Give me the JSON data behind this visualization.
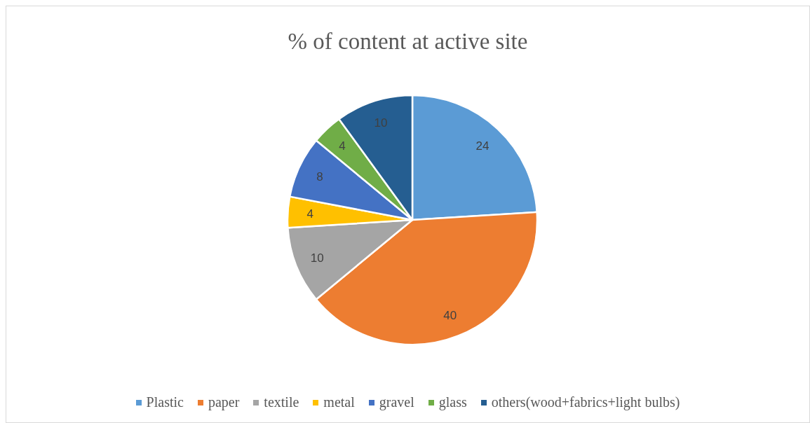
{
  "chart_data": {
    "type": "pie",
    "title": "% of content at active site",
    "categories": [
      "Plastic",
      "paper",
      "textile",
      "metal",
      "gravel",
      "glass",
      "others(wood+fabrics+light bulbs)"
    ],
    "values": [
      24,
      40,
      10,
      4,
      8,
      4,
      10
    ],
    "colors": [
      "#5b9bd5",
      "#ed7d31",
      "#a5a5a5",
      "#ffc000",
      "#4472c4",
      "#70ad47",
      "#255e91"
    ],
    "data_labels": true,
    "legend": "bottom"
  }
}
